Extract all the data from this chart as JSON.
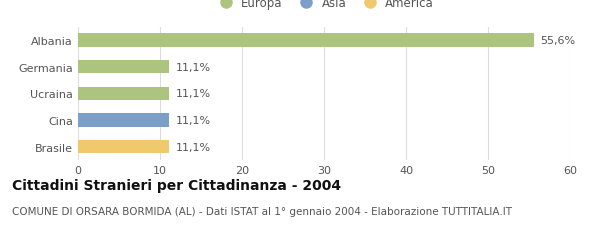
{
  "categories": [
    "Albania",
    "Germania",
    "Ucraina",
    "Cina",
    "Brasile"
  ],
  "values": [
    55.6,
    11.1,
    11.1,
    11.1,
    11.1
  ],
  "labels": [
    "55,6%",
    "11,1%",
    "11,1%",
    "11,1%",
    "11,1%"
  ],
  "bar_colors": [
    "#adc47e",
    "#adc47e",
    "#adc47e",
    "#7b9fc7",
    "#f0c96e"
  ],
  "legend_items": [
    {
      "label": "Europa",
      "color": "#adc47e"
    },
    {
      "label": "Asia",
      "color": "#7b9fc7"
    },
    {
      "label": "America",
      "color": "#f0c96e"
    }
  ],
  "xlim": [
    0,
    60
  ],
  "xticks": [
    0,
    10,
    20,
    30,
    40,
    50,
    60
  ],
  "title": "Cittadini Stranieri per Cittadinanza - 2004",
  "subtitle": "COMUNE DI ORSARA BORMIDA (AL) - Dati ISTAT al 1° gennaio 2004 - Elaborazione TUTTITALIA.IT",
  "background_color": "#ffffff",
  "grid_color": "#dddddd",
  "bar_height": 0.5,
  "label_fontsize": 8,
  "tick_fontsize": 8,
  "title_fontsize": 10,
  "subtitle_fontsize": 7.5,
  "legend_fontsize": 8.5
}
